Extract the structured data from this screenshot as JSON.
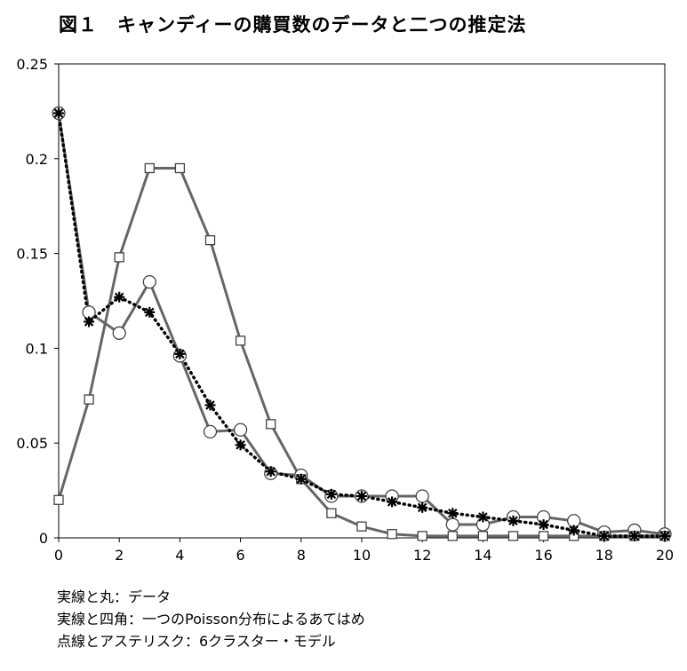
{
  "chart_data": {
    "type": "line",
    "title": "図１　キャンディーの購買数のデータと二つの推定法",
    "x": [
      0,
      1,
      2,
      3,
      4,
      5,
      6,
      7,
      8,
      9,
      10,
      11,
      12,
      13,
      14,
      15,
      16,
      17,
      18,
      19,
      20
    ],
    "xticks": [
      "0",
      "2",
      "4",
      "6",
      "8",
      "10",
      "12",
      "14",
      "16",
      "18",
      "20"
    ],
    "yticks": [
      "0",
      "0.05",
      "0.1",
      "0.15",
      "0.2",
      "0.25"
    ],
    "xlim": [
      0,
      20
    ],
    "ylim": [
      0,
      0.25
    ],
    "grid": false,
    "legend": [
      "実線と丸：データ",
      "実線と四角：一つのPoisson分布によるあてはめ",
      "点線とアステリスク：6クラスター・モデル"
    ],
    "series": [
      {
        "marker": "circle",
        "style": "solid",
        "color": "#666666",
        "values": [
          0.224,
          0.119,
          0.108,
          0.135,
          0.096,
          0.056,
          0.057,
          0.034,
          0.033,
          0.022,
          0.022,
          0.022,
          0.022,
          0.007,
          0.007,
          0.011,
          0.011,
          0.009,
          0.003,
          0.004,
          0.002
        ]
      },
      {
        "marker": "square",
        "style": "solid",
        "color": "#666666",
        "values": [
          0.02,
          0.073,
          0.148,
          0.195,
          0.195,
          0.157,
          0.104,
          0.06,
          0.031,
          0.013,
          0.006,
          0.002,
          0.001,
          0.001,
          0.001,
          0.001,
          0.001,
          0.001,
          0.001,
          0.001,
          0.001
        ]
      },
      {
        "marker": "asterisk",
        "style": "dotted",
        "color": "#000000",
        "values": [
          0.224,
          0.114,
          0.127,
          0.119,
          0.097,
          0.07,
          0.049,
          0.035,
          0.031,
          0.023,
          0.022,
          0.019,
          0.016,
          0.013,
          0.011,
          0.009,
          0.007,
          0.004,
          0.001,
          0.001,
          0.001
        ]
      }
    ]
  }
}
